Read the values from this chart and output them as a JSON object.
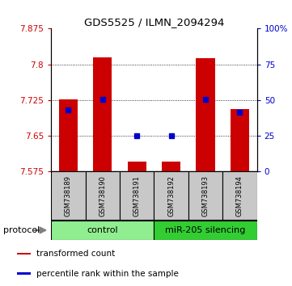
{
  "title": "GDS5525 / ILMN_2094294",
  "samples": [
    "GSM738189",
    "GSM738190",
    "GSM738191",
    "GSM738192",
    "GSM738193",
    "GSM738194"
  ],
  "red_values": [
    7.726,
    7.815,
    7.596,
    7.596,
    7.813,
    7.706
  ],
  "blue_values": [
    7.704,
    7.727,
    7.651,
    7.651,
    7.727,
    7.7
  ],
  "y_min": 7.575,
  "y_max": 7.875,
  "y_ticks_left": [
    7.575,
    7.65,
    7.725,
    7.8,
    7.875
  ],
  "y_ticks_right_pct": [
    0,
    25,
    50,
    75,
    100
  ],
  "right_tick_labels": [
    "0",
    "25",
    "50",
    "75",
    "100%"
  ],
  "protocol_groups": [
    {
      "label": "control",
      "indices": [
        0,
        1,
        2
      ],
      "color": "#90ee90"
    },
    {
      "label": "miR-205 silencing",
      "indices": [
        3,
        4,
        5
      ],
      "color": "#32cd32"
    }
  ],
  "bar_color": "#cc0000",
  "blue_color": "#0000cc",
  "bg_color": "#ffffff",
  "label_bg": "#c8c8c8",
  "protocol_label": "protocol",
  "legend_items": [
    {
      "label": "transformed count",
      "color": "#cc0000"
    },
    {
      "label": "percentile rank within the sample",
      "color": "#0000cc"
    }
  ],
  "bar_width": 0.55
}
